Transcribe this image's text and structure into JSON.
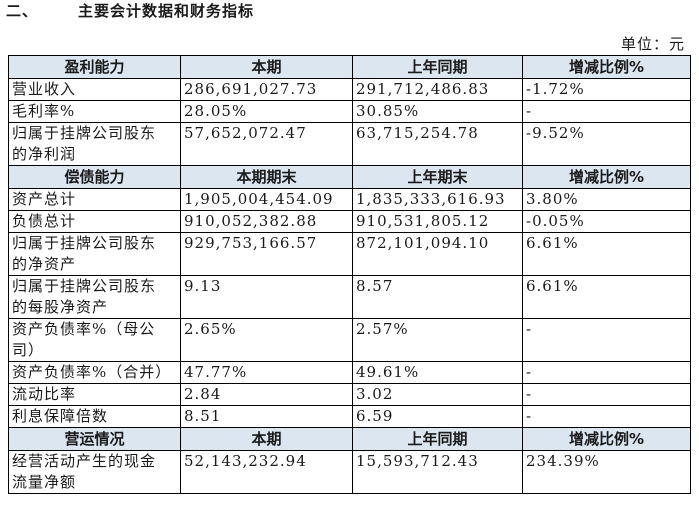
{
  "header": {
    "number": "二、",
    "title": "主要会计数据和财务指标",
    "unit": "单位：元"
  },
  "sections": [
    {
      "header": [
        "盈利能力",
        "本期",
        "上年同期",
        "增减比例%"
      ],
      "rows": [
        [
          "营业收入",
          "286,691,027.73",
          "291,712,486.83",
          "-1.72%"
        ],
        [
          "毛利率%",
          "28.05%",
          "30.85%",
          "-"
        ],
        [
          "归属于挂牌公司股东的净利润",
          "57,652,072.47",
          "63,715,254.78",
          "-9.52%"
        ]
      ]
    },
    {
      "header": [
        "偿债能力",
        "本期期末",
        "上年期末",
        "增减比例%"
      ],
      "rows": [
        [
          "资产总计",
          "1,905,004,454.09",
          "1,835,333,616.93",
          "3.80%"
        ],
        [
          "负债总计",
          "910,052,382.88",
          "910,531,805.12",
          "-0.05%"
        ],
        [
          "归属于挂牌公司股东的净资产",
          "929,753,166.57",
          "872,101,094.10",
          "6.61%"
        ],
        [
          "归属于挂牌公司股东的每股净资产",
          "9.13",
          "8.57",
          "6.61%"
        ],
        [
          "资产负债率%（母公司）",
          "2.65%",
          "2.57%",
          "-"
        ],
        [
          "资产负债率%（合并）",
          "47.77%",
          "49.61%",
          "-"
        ],
        [
          "流动比率",
          "2.84",
          "3.02",
          "-"
        ],
        [
          "利息保障倍数",
          "8.51",
          "6.59",
          "-"
        ]
      ]
    },
    {
      "header": [
        "营运情况",
        "本期",
        "上年同期",
        "增减比例%"
      ],
      "rows": [
        [
          "经营活动产生的现金流量净额",
          "52,143,232.94",
          "15,593,712.43",
          "234.39%"
        ]
      ]
    }
  ]
}
